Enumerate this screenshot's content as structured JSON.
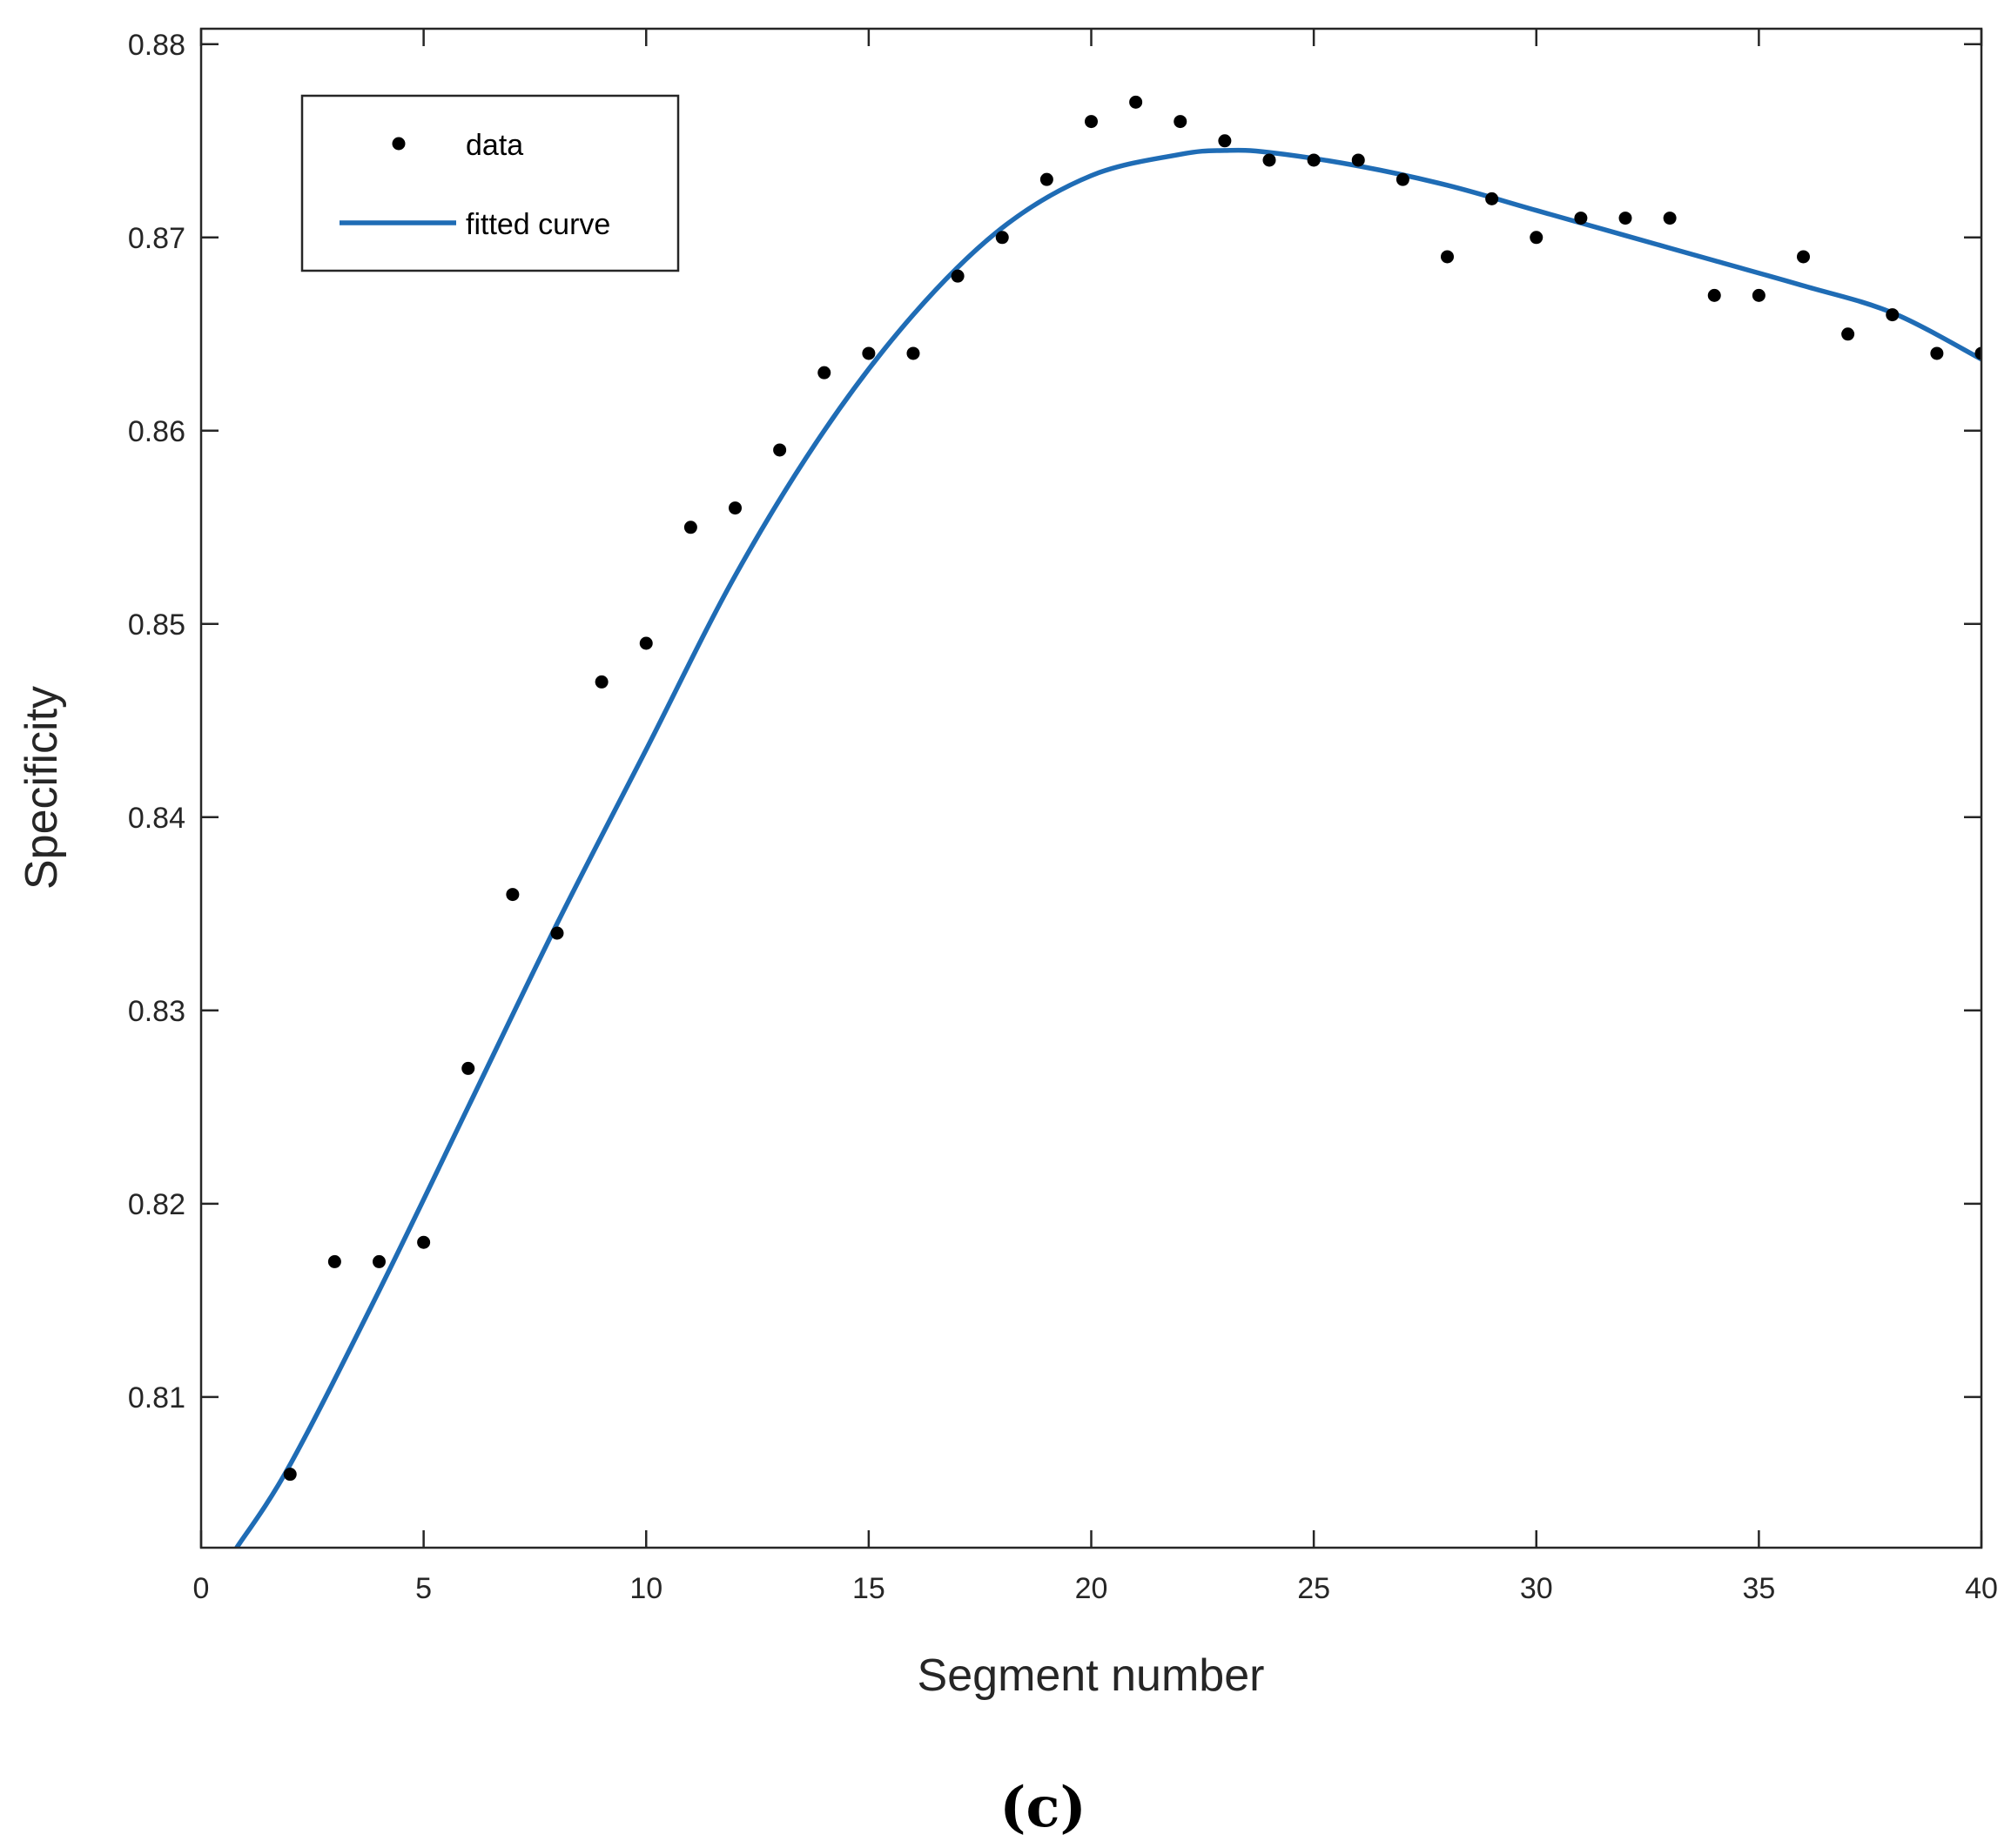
{
  "chart_data": {
    "type": "scatter",
    "xlabel": "Segment number",
    "ylabel": "Specificity",
    "xlim": [
      0,
      40
    ],
    "ylim": [
      0.8022,
      0.8808
    ],
    "xticks": [
      0,
      5,
      10,
      15,
      20,
      25,
      30,
      35,
      40
    ],
    "xtick_labels": [
      "0",
      "5",
      "10",
      "15",
      "20",
      "25",
      "30",
      "35",
      "40"
    ],
    "yticks": [
      0.81,
      0.82,
      0.83,
      0.84,
      0.85,
      0.86,
      0.87,
      0.88
    ],
    "ytick_labels": [
      "0.81",
      "0.82",
      "0.83",
      "0.84",
      "0.85",
      "0.86",
      "0.87",
      "0.88"
    ],
    "grid": false,
    "legend_position": "top-left",
    "series": [
      {
        "name": "data",
        "kind": "markers",
        "color": "#000000",
        "x": [
          2,
          3,
          4,
          5,
          6,
          7,
          8,
          9,
          10,
          11,
          12,
          13,
          14,
          15,
          16,
          17,
          18,
          19,
          20,
          21,
          22,
          23,
          24,
          25,
          26,
          27,
          28,
          29,
          30,
          31,
          32,
          33,
          34,
          35,
          36,
          37,
          38,
          39,
          40
        ],
        "y": [
          0.806,
          0.817,
          0.817,
          0.818,
          0.827,
          0.836,
          0.834,
          0.847,
          0.849,
          0.855,
          0.856,
          0.859,
          0.863,
          0.864,
          0.864,
          0.868,
          0.87,
          0.873,
          0.876,
          0.877,
          0.876,
          0.875,
          0.874,
          0.874,
          0.874,
          0.873,
          0.869,
          0.872,
          0.87,
          0.871,
          0.871,
          0.871,
          0.867,
          0.867,
          0.869,
          0.865,
          0.866,
          0.864,
          0.864
        ]
      },
      {
        "name": "fitted curve",
        "kind": "line",
        "color": "#1F6CB5",
        "x": [
          0.8,
          2,
          4,
          6,
          8,
          10,
          12,
          14,
          16,
          18,
          20,
          22,
          23,
          24,
          26,
          28,
          30,
          32,
          34,
          36,
          38,
          40
        ],
        "y": [
          0.8022,
          0.8065,
          0.8155,
          0.825,
          0.8345,
          0.8435,
          0.8525,
          0.86,
          0.866,
          0.8705,
          0.8732,
          0.8743,
          0.8745,
          0.8744,
          0.8737,
          0.8727,
          0.8714,
          0.8701,
          0.8688,
          0.8675,
          0.8661,
          0.8637
        ]
      }
    ],
    "annotations": [
      "(c)"
    ]
  }
}
